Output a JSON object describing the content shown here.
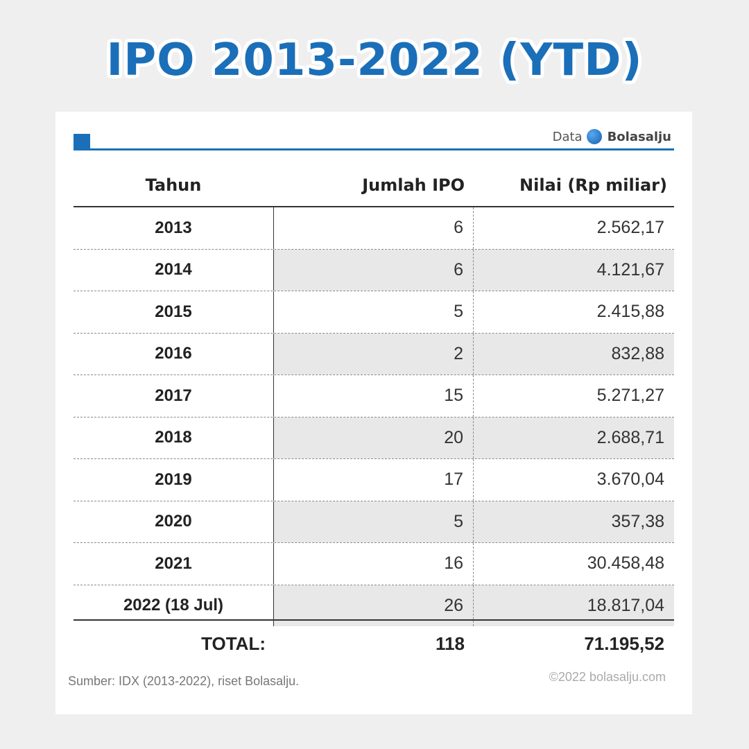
{
  "title": "IPO 2013-2022 (YTD)",
  "brand": {
    "prefix": "Data",
    "name": "Bolasalju"
  },
  "colors": {
    "accent": "#1a6fb8",
    "row_alt": "#e8e8e8"
  },
  "table": {
    "headers": {
      "year": "Tahun",
      "count": "Jumlah IPO",
      "value": "Nilai (Rp miliar)"
    },
    "rows": [
      {
        "year": "2013",
        "count": "6",
        "value": "2.562,17"
      },
      {
        "year": "2014",
        "count": "6",
        "value": "4.121,67"
      },
      {
        "year": "2015",
        "count": "5",
        "value": "2.415,88"
      },
      {
        "year": "2016",
        "count": "2",
        "value": "832,88"
      },
      {
        "year": "2017",
        "count": "15",
        "value": "5.271,27"
      },
      {
        "year": "2018",
        "count": "20",
        "value": "2.688,71"
      },
      {
        "year": "2019",
        "count": "17",
        "value": "3.670,04"
      },
      {
        "year": "2020",
        "count": "5",
        "value": "357,38"
      },
      {
        "year": "2021",
        "count": "16",
        "value": "30.458,48"
      },
      {
        "year": "2022 (18 Jul)",
        "count": "26",
        "value": "18.817,04"
      }
    ],
    "total": {
      "label": "TOTAL:",
      "count": "118",
      "value": "71.195,52"
    }
  },
  "footer": {
    "source": "Sumber: IDX (2013-2022), riset Bolasalju.",
    "copyright": "©2022 bolasalju.com"
  }
}
